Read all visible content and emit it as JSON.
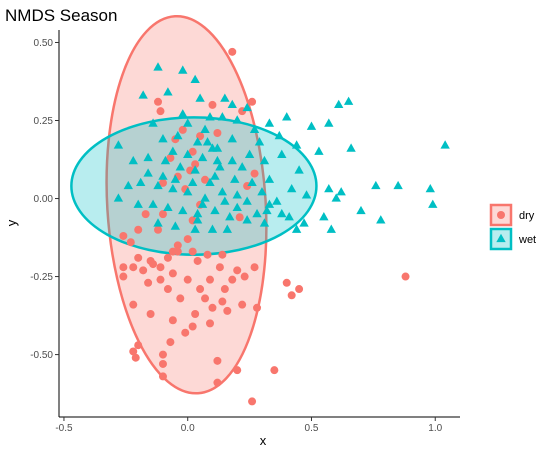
{
  "chart_data": {
    "type": "scatter",
    "title": "NMDS Season",
    "xlabel": "x",
    "ylabel": "y",
    "xlim": [
      -0.52,
      1.1
    ],
    "ylim": [
      -0.7,
      0.54
    ],
    "x_ticks": [
      -0.5,
      0.0,
      0.5,
      1.0
    ],
    "x_tick_labels": [
      "-0.5",
      "0.0",
      "0.5",
      "1.0"
    ],
    "y_ticks": [
      -0.5,
      -0.25,
      0.0,
      0.25,
      0.5
    ],
    "y_tick_labels": [
      "-0.50",
      "-0.25",
      "0.00",
      "0.25",
      "0.50"
    ],
    "grid": false,
    "legend_position": "right",
    "series": [
      {
        "name": "dry",
        "color": "#F8766D",
        "marker": "circle",
        "ellipse": {
          "cx": -0.005,
          "cy": -0.02,
          "rx": 0.32,
          "ry": 0.605,
          "angle_deg": 3.5
        },
        "points": [
          [
            0.18,
            0.47
          ],
          [
            0.26,
            0.31
          ],
          [
            -0.12,
            0.31
          ],
          [
            -0.11,
            0.28
          ],
          [
            0.1,
            0.3
          ],
          [
            0.22,
            0.28
          ],
          [
            -0.02,
            0.22
          ],
          [
            0.05,
            0.2
          ],
          [
            0.12,
            0.21
          ],
          [
            -0.05,
            0.19
          ],
          [
            0.02,
            0.15
          ],
          [
            -0.07,
            0.13
          ],
          [
            0.03,
            0.11
          ],
          [
            0.01,
            0.09
          ],
          [
            -0.04,
            0.07
          ],
          [
            0.07,
            0.06
          ],
          [
            -0.1,
            0.05
          ],
          [
            -0.01,
            0.03
          ],
          [
            0.05,
            -0.02
          ],
          [
            -0.1,
            -0.05
          ],
          [
            0.02,
            -0.07
          ],
          [
            -0.17,
            -0.05
          ],
          [
            -0.12,
            -0.1
          ],
          [
            0.0,
            -0.13
          ],
          [
            -0.04,
            -0.15
          ],
          [
            -0.06,
            -0.17
          ],
          [
            -0.26,
            -0.12
          ],
          [
            -0.2,
            -0.1
          ],
          [
            -0.23,
            -0.14
          ],
          [
            -0.08,
            -0.19
          ],
          [
            -0.15,
            -0.2
          ],
          [
            -0.26,
            -0.22
          ],
          [
            -0.26,
            -0.25
          ],
          [
            -0.2,
            -0.19
          ],
          [
            -0.14,
            -0.21
          ],
          [
            -0.11,
            -0.22
          ],
          [
            -0.04,
            -0.17
          ],
          [
            0.02,
            -0.17
          ],
          [
            0.08,
            -0.18
          ],
          [
            0.14,
            -0.18
          ],
          [
            0.04,
            -0.2
          ],
          [
            0.13,
            -0.22
          ],
          [
            0.2,
            -0.23
          ],
          [
            0.27,
            -0.22
          ],
          [
            -0.22,
            -0.22
          ],
          [
            -0.18,
            -0.23
          ],
          [
            -0.11,
            -0.26
          ],
          [
            -0.16,
            -0.27
          ],
          [
            -0.06,
            -0.24
          ],
          [
            0.0,
            -0.26
          ],
          [
            0.09,
            -0.26
          ],
          [
            0.18,
            -0.26
          ],
          [
            0.23,
            -0.25
          ],
          [
            -0.08,
            -0.29
          ],
          [
            0.05,
            -0.29
          ],
          [
            0.15,
            -0.29
          ],
          [
            -0.03,
            -0.32
          ],
          [
            0.07,
            -0.32
          ],
          [
            0.14,
            -0.33
          ],
          [
            0.22,
            -0.34
          ],
          [
            -0.22,
            -0.34
          ],
          [
            -0.15,
            -0.37
          ],
          [
            -0.06,
            -0.39
          ],
          [
            0.03,
            -0.37
          ],
          [
            0.1,
            -0.35
          ],
          [
            0.16,
            -0.36
          ],
          [
            0.28,
            -0.35
          ],
          [
            0.02,
            -0.41
          ],
          [
            0.09,
            -0.4
          ],
          [
            -0.01,
            -0.43
          ],
          [
            -0.07,
            -0.46
          ],
          [
            -0.1,
            -0.5
          ],
          [
            -0.2,
            -0.47
          ],
          [
            -0.22,
            -0.49
          ],
          [
            -0.21,
            -0.51
          ],
          [
            0.12,
            -0.52
          ],
          [
            0.2,
            -0.55
          ],
          [
            -0.1,
            -0.53
          ],
          [
            -0.1,
            -0.57
          ],
          [
            0.12,
            -0.59
          ],
          [
            0.26,
            -0.65
          ],
          [
            0.35,
            -0.55
          ],
          [
            0.4,
            -0.27
          ],
          [
            0.45,
            -0.29
          ],
          [
            0.42,
            -0.31
          ],
          [
            0.88,
            -0.25
          ],
          [
            0.27,
            0.08
          ],
          [
            0.24,
            0.04
          ],
          [
            0.21,
            -0.06
          ]
        ]
      },
      {
        "name": "wet",
        "color": "#00BFC4",
        "marker": "triangle",
        "ellipse": {
          "cx": 0.025,
          "cy": 0.04,
          "rx": 0.495,
          "ry": 0.22,
          "angle_deg": 0
        },
        "points": [
          [
            -0.12,
            0.42
          ],
          [
            -0.02,
            0.41
          ],
          [
            0.03,
            0.38
          ],
          [
            -0.18,
            0.33
          ],
          [
            -0.08,
            0.34
          ],
          [
            0.05,
            0.32
          ],
          [
            0.15,
            0.32
          ],
          [
            0.18,
            0.3
          ],
          [
            0.24,
            0.29
          ],
          [
            0.09,
            0.26
          ],
          [
            0.0,
            0.24
          ],
          [
            0.14,
            0.26
          ],
          [
            0.2,
            0.25
          ],
          [
            0.27,
            0.22
          ],
          [
            0.33,
            0.24
          ],
          [
            0.4,
            0.26
          ],
          [
            0.5,
            0.23
          ],
          [
            0.61,
            0.3
          ],
          [
            0.65,
            0.31
          ],
          [
            0.57,
            0.24
          ],
          [
            0.66,
            0.16
          ],
          [
            0.53,
            0.15
          ],
          [
            0.44,
            0.17
          ],
          [
            0.38,
            0.14
          ],
          [
            0.31,
            0.12
          ],
          [
            0.25,
            0.14
          ],
          [
            0.18,
            0.12
          ],
          [
            0.1,
            0.16
          ],
          [
            0.04,
            0.18
          ],
          [
            -0.04,
            0.2
          ],
          [
            -0.1,
            0.19
          ],
          [
            -0.16,
            0.13
          ],
          [
            -0.22,
            0.12
          ],
          [
            -0.28,
            0.17
          ],
          [
            -0.09,
            0.12
          ],
          [
            -0.03,
            0.1
          ],
          [
            0.03,
            0.09
          ],
          [
            0.11,
            0.07
          ],
          [
            0.19,
            0.06
          ],
          [
            0.26,
            0.05
          ],
          [
            0.33,
            0.06
          ],
          [
            0.42,
            0.03
          ],
          [
            0.48,
            0.01
          ],
          [
            0.57,
            0.03
          ],
          [
            0.6,
            0.0
          ],
          [
            0.62,
            0.02
          ],
          [
            0.7,
            -0.04
          ],
          [
            0.78,
            -0.07
          ],
          [
            0.76,
            0.04
          ],
          [
            0.98,
            0.03
          ],
          [
            0.99,
            -0.02
          ],
          [
            1.04,
            0.17
          ],
          [
            0.85,
            0.04
          ],
          [
            0.58,
            -0.1
          ],
          [
            0.55,
            -0.06
          ],
          [
            0.47,
            -0.08
          ],
          [
            0.44,
            -0.1
          ],
          [
            0.36,
            -0.01
          ],
          [
            0.32,
            -0.04
          ],
          [
            0.28,
            -0.05
          ],
          [
            0.2,
            0.01
          ],
          [
            0.14,
            0.02
          ],
          [
            0.07,
            0.0
          ],
          [
            0.0,
            0.02
          ],
          [
            -0.06,
            0.03
          ],
          [
            -0.12,
            0.04
          ],
          [
            -0.19,
            0.05
          ],
          [
            -0.24,
            0.04
          ],
          [
            -0.28,
            0.0
          ],
          [
            -0.2,
            -0.02
          ],
          [
            -0.14,
            -0.02
          ],
          [
            -0.08,
            -0.03
          ],
          [
            -0.02,
            -0.04
          ],
          [
            0.04,
            -0.05
          ],
          [
            0.11,
            -0.04
          ],
          [
            0.17,
            -0.06
          ],
          [
            0.24,
            -0.07
          ],
          [
            0.31,
            -0.08
          ],
          [
            0.38,
            -0.05
          ],
          [
            0.41,
            -0.06
          ],
          [
            0.1,
            -0.1
          ],
          [
            0.16,
            -0.1
          ],
          [
            0.03,
            -0.1
          ],
          [
            -0.05,
            -0.09
          ],
          [
            -0.12,
            -0.08
          ],
          [
            0.0,
            0.14
          ],
          [
            0.06,
            0.13
          ],
          [
            0.13,
            0.1
          ],
          [
            -0.05,
            0.06
          ],
          [
            0.09,
            0.05
          ],
          [
            0.15,
            -0.01
          ],
          [
            0.22,
            0.1
          ],
          [
            0.29,
            0.18
          ],
          [
            0.37,
            0.2
          ],
          [
            0.45,
            0.09
          ],
          [
            0.07,
            0.22
          ],
          [
            -0.02,
            0.27
          ],
          [
            -0.14,
            0.24
          ],
          [
            -0.1,
            0.07
          ],
          [
            0.02,
            0.05
          ],
          [
            0.12,
            0.16
          ],
          [
            0.18,
            0.19
          ],
          [
            -0.06,
            0.15
          ],
          [
            0.06,
            -0.02
          ],
          [
            -0.16,
            0.08
          ],
          [
            0.24,
            -0.01
          ],
          [
            0.33,
            -0.02
          ],
          [
            0.3,
            0.02
          ],
          [
            0.2,
            -0.03
          ],
          [
            0.12,
            0.12
          ],
          [
            0.04,
            -0.07
          ],
          [
            0.08,
            0.18
          ]
        ]
      }
    ]
  }
}
